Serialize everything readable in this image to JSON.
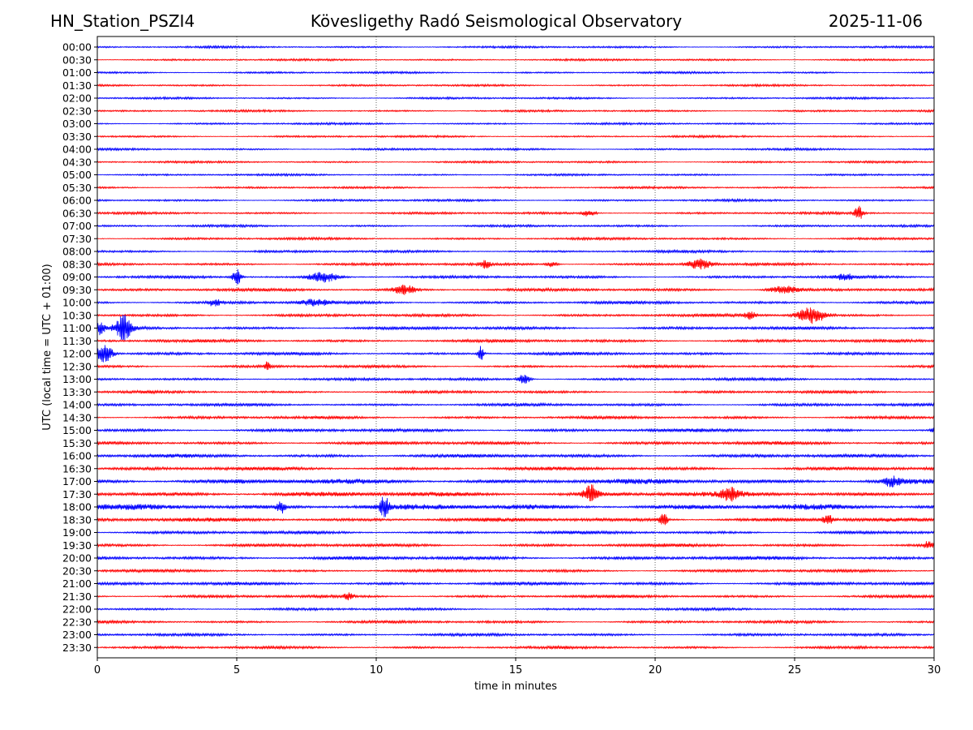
{
  "header": {
    "station": "HN_Station_PSZI4",
    "observatory": "Kövesligethy Radó Seismological Observatory",
    "date": "2025-11-06"
  },
  "chart_data": {
    "type": "line",
    "title": "Kövesligethy Radó Seismological Observatory",
    "xlabel": "time in minutes",
    "ylabel": "UTC (local time = UTC + 01:00)",
    "xlim": [
      0,
      30
    ],
    "xticks": [
      0,
      5,
      10,
      15,
      20,
      25,
      30
    ],
    "grid": "vertical dotted lines at 5-minute intervals",
    "colors": [
      "#0000ff",
      "#ff0000"
    ],
    "rows": [
      "00:00",
      "00:30",
      "01:00",
      "01:30",
      "02:00",
      "02:30",
      "03:00",
      "03:30",
      "04:00",
      "04:30",
      "05:00",
      "05:30",
      "06:00",
      "06:30",
      "07:00",
      "07:30",
      "08:00",
      "08:30",
      "09:00",
      "09:30",
      "10:00",
      "10:30",
      "11:00",
      "11:30",
      "12:00",
      "12:30",
      "13:00",
      "13:30",
      "14:00",
      "14:30",
      "15:00",
      "15:30",
      "16:00",
      "16:30",
      "17:00",
      "17:30",
      "18:00",
      "18:30",
      "19:00",
      "19:30",
      "20:00",
      "20:30",
      "21:00",
      "21:30",
      "22:00",
      "22:30",
      "23:00",
      "23:30"
    ],
    "noise_level": [
      1,
      1,
      1,
      1,
      1,
      1,
      1,
      1,
      1,
      1,
      1,
      1,
      1.1,
      1.1,
      1.1,
      1.2,
      1.2,
      1.3,
      1.3,
      1.4,
      1.4,
      1.4,
      1.5,
      1.5,
      1.4,
      1.3,
      1.3,
      1.3,
      1.4,
      1.4,
      1.6,
      1.6,
      1.7,
      1.7,
      2.4,
      2.3,
      2.6,
      1.9,
      1.5,
      1.6,
      1.8,
      1.4,
      1.6,
      1.4,
      1.2,
      1.3,
      1.3,
      1.3
    ],
    "events": [
      {
        "row": "06:30",
        "minute": 17.6,
        "amplitude": 4,
        "duration_min": 0.5
      },
      {
        "row": "06:30",
        "minute": 27.3,
        "amplitude": 9,
        "duration_min": 0.3
      },
      {
        "row": "08:30",
        "minute": 13.9,
        "amplitude": 6,
        "duration_min": 0.3
      },
      {
        "row": "08:30",
        "minute": 16.3,
        "amplitude": 4,
        "duration_min": 0.4
      },
      {
        "row": "08:30",
        "minute": 21.6,
        "amplitude": 7,
        "duration_min": 0.8
      },
      {
        "row": "09:00",
        "minute": 5.0,
        "amplitude": 11,
        "duration_min": 0.3
      },
      {
        "row": "09:00",
        "minute": 8.1,
        "amplitude": 7,
        "duration_min": 1.0
      },
      {
        "row": "09:00",
        "minute": 26.8,
        "amplitude": 4,
        "duration_min": 0.6
      },
      {
        "row": "09:30",
        "minute": 11.0,
        "amplitude": 6,
        "duration_min": 0.8
      },
      {
        "row": "09:30",
        "minute": 24.6,
        "amplitude": 5,
        "duration_min": 1.0
      },
      {
        "row": "10:00",
        "minute": 4.2,
        "amplitude": 5,
        "duration_min": 0.4
      },
      {
        "row": "10:00",
        "minute": 7.8,
        "amplitude": 4,
        "duration_min": 1.0
      },
      {
        "row": "10:30",
        "minute": 23.4,
        "amplitude": 5,
        "duration_min": 0.4
      },
      {
        "row": "10:30",
        "minute": 25.6,
        "amplitude": 11,
        "duration_min": 1.0
      },
      {
        "row": "11:00",
        "minute": 0.1,
        "amplitude": 9,
        "duration_min": 0.3
      },
      {
        "row": "11:00",
        "minute": 0.95,
        "amplitude": 16,
        "duration_min": 0.6
      },
      {
        "row": "12:00",
        "minute": 0.25,
        "amplitude": 13,
        "duration_min": 0.6
      },
      {
        "row": "12:00",
        "minute": 13.75,
        "amplitude": 10,
        "duration_min": 0.2
      },
      {
        "row": "12:30",
        "minute": 6.1,
        "amplitude": 6,
        "duration_min": 0.2
      },
      {
        "row": "13:00",
        "minute": 15.3,
        "amplitude": 7,
        "duration_min": 0.4
      },
      {
        "row": "15:00",
        "minute": 30.0,
        "amplitude": 6,
        "duration_min": 0.2
      },
      {
        "row": "17:00",
        "minute": 28.5,
        "amplitude": 6,
        "duration_min": 0.6
      },
      {
        "row": "17:30",
        "minute": 17.7,
        "amplitude": 12,
        "duration_min": 0.5
      },
      {
        "row": "17:30",
        "minute": 22.7,
        "amplitude": 8,
        "duration_min": 0.6
      },
      {
        "row": "18:00",
        "minute": 6.6,
        "amplitude": 8,
        "duration_min": 0.3
      },
      {
        "row": "18:00",
        "minute": 10.3,
        "amplitude": 14,
        "duration_min": 0.3
      },
      {
        "row": "18:30",
        "minute": 20.3,
        "amplitude": 9,
        "duration_min": 0.3
      },
      {
        "row": "18:30",
        "minute": 26.2,
        "amplitude": 6,
        "duration_min": 0.4
      },
      {
        "row": "19:30",
        "minute": 29.8,
        "amplitude": 5,
        "duration_min": 0.3
      },
      {
        "row": "21:30",
        "minute": 9.0,
        "amplitude": 4,
        "duration_min": 0.3
      }
    ]
  }
}
